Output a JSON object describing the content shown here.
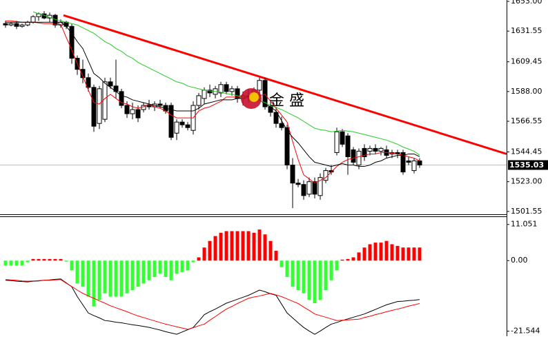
{
  "chart_data": [
    {
      "type": "candlestick",
      "open": [
        1637,
        1636,
        1637,
        1635,
        1636,
        1638,
        1642,
        1644,
        1641,
        1643,
        1636,
        1638,
        1635,
        1612,
        1604,
        1598,
        1591,
        1565,
        1568,
        1595,
        1592,
        1588,
        1578,
        1572,
        1575,
        1575,
        1578,
        1577,
        1579,
        1578,
        1578,
        1558,
        1566,
        1564,
        1560,
        1578,
        1583,
        1589,
        1586,
        1587,
        1593,
        1588,
        1590,
        1583,
        1585,
        1584,
        1589,
        1596,
        1577,
        1573,
        1565,
        1562,
        1535,
        1522,
        1521,
        1514,
        1523,
        1513,
        1524,
        1531,
        1544,
        1559,
        1556,
        1546,
        1535,
        1547,
        1545,
        1547,
        1545,
        1546,
        1543,
        1544,
        1544,
        1538,
        1531,
        1538
      ],
      "high": [
        1639,
        1638,
        1639,
        1637,
        1639,
        1643,
        1645,
        1646,
        1645,
        1644,
        1640,
        1639,
        1637,
        1614,
        1611,
        1601,
        1593,
        1592,
        1598,
        1598,
        1611,
        1590,
        1581,
        1580,
        1578,
        1580,
        1582,
        1581,
        1582,
        1580,
        1580,
        1568,
        1568,
        1566,
        1581,
        1587,
        1591,
        1593,
        1592,
        1595,
        1595,
        1592,
        1592,
        1588,
        1590,
        1591,
        1598,
        1598,
        1582,
        1577,
        1570,
        1564,
        1540,
        1525,
        1524,
        1526,
        1526,
        1529,
        1533,
        1535,
        1562,
        1561,
        1558,
        1548,
        1547,
        1550,
        1549,
        1550,
        1548,
        1549,
        1546,
        1546,
        1546,
        1541,
        1540,
        1540
      ],
      "low": [
        1634,
        1635,
        1633,
        1634,
        1635,
        1637,
        1639,
        1640,
        1638,
        1634,
        1634,
        1633,
        1608,
        1600,
        1594,
        1588,
        1559,
        1561,
        1566,
        1590,
        1583,
        1576,
        1569,
        1568,
        1566,
        1573,
        1575,
        1574,
        1576,
        1572,
        1553,
        1553,
        1562,
        1560,
        1557,
        1575,
        1579,
        1584,
        1583,
        1584,
        1586,
        1585,
        1580,
        1578,
        1580,
        1582,
        1585,
        1575,
        1570,
        1562,
        1560,
        1532,
        1504,
        1519,
        1510,
        1512,
        1511,
        1510,
        1522,
        1528,
        1542,
        1548,
        1528,
        1535,
        1532,
        1538,
        1542,
        1543,
        1542,
        1540,
        1540,
        1540,
        1528,
        1535,
        1529,
        1533
      ],
      "close": [
        1636,
        1637,
        1635,
        1636,
        1638,
        1642,
        1644,
        1641,
        1643,
        1636,
        1638,
        1635,
        1612,
        1604,
        1598,
        1591,
        1563,
        1590,
        1595,
        1592,
        1588,
        1578,
        1572,
        1575,
        1569,
        1578,
        1577,
        1579,
        1578,
        1574,
        1555,
        1566,
        1564,
        1562,
        1578,
        1585,
        1589,
        1587,
        1590,
        1593,
        1588,
        1590,
        1583,
        1585,
        1584,
        1589,
        1596,
        1577,
        1573,
        1565,
        1562,
        1535,
        1522,
        1521,
        1513,
        1523,
        1514,
        1526,
        1531,
        1530,
        1559,
        1550,
        1541,
        1537,
        1545,
        1541,
        1547,
        1545,
        1547,
        1542,
        1544,
        1543,
        1530,
        1537,
        1538,
        1535
      ],
      "up_color": "#ffffff",
      "down_color": "#000000",
      "edge_color": "#000000",
      "series": [
        {
          "color": "#ff0000",
          "values": [
            1639,
            1639,
            1638.5,
            1638,
            1638,
            1638,
            1637.5,
            1637,
            1637,
            1636.5,
            1636.5,
            1627,
            1618,
            1608,
            1599,
            1589,
            1580,
            1579,
            1583,
            1586,
            1583,
            1580,
            1579,
            1577,
            1576,
            1577,
            1579,
            1577,
            1576,
            1574,
            1571,
            1569,
            1569,
            1569,
            1569,
            1574,
            1576,
            1577,
            1579,
            1581,
            1584,
            1584,
            1584,
            1584,
            1584,
            1584,
            1585,
            1586,
            1581,
            1576,
            1571,
            1566,
            1552,
            1539,
            1528,
            1525,
            1522,
            1524,
            1526,
            1530,
            1534,
            1537,
            1539,
            1540,
            1541,
            1542,
            1543,
            1543,
            1544,
            1544,
            1543.5,
            1543,
            1542,
            1541,
            1540,
            1538
          ]
        },
        {
          "color": "#000000",
          "values": [
            1638,
            1638,
            1638,
            1638,
            1638,
            1638,
            1638,
            1638,
            1638,
            1638,
            1638,
            1635,
            1630,
            1624,
            1619,
            1610,
            1601,
            1598,
            1594,
            1591,
            1588,
            1585,
            1584,
            1582,
            1581,
            1580,
            1579,
            1578,
            1577,
            1576,
            1575,
            1574,
            1574,
            1574,
            1574,
            1576,
            1579,
            1580,
            1581,
            1582,
            1582,
            1582,
            1583,
            1583,
            1584,
            1583,
            1582,
            1579,
            1577,
            1574,
            1567,
            1560,
            1555,
            1551,
            1546,
            1541,
            1537,
            1536,
            1535,
            1534,
            1535,
            1536,
            1535,
            1535,
            1534,
            1534,
            1535,
            1537,
            1538,
            1540,
            1541,
            1542,
            1542,
            1543,
            1543,
            1541
          ]
        },
        {
          "color": "#22cc22",
          "values": [
            null,
            null,
            null,
            null,
            null,
            1645.5,
            1644,
            1643,
            1641.5,
            1640,
            1639,
            1638,
            1637,
            1636,
            1634,
            1632,
            1630,
            1627,
            1624,
            1622,
            1619,
            1617,
            1614,
            1612,
            1609,
            1607,
            1605,
            1603,
            1601,
            1599,
            1597,
            1595,
            1594,
            1592,
            1591,
            1590,
            1589,
            1588.5,
            1588,
            1587.5,
            1586.5,
            1586,
            1585,
            1584,
            1583,
            1582,
            1581.5,
            1580,
            1578,
            1576.5,
            1575,
            1573,
            1571,
            1569,
            1566.5,
            1564,
            1561.5,
            1560.5,
            1560,
            1559,
            1559.5,
            1560,
            1559.5,
            1559,
            1558,
            1557,
            1556,
            1555,
            1554,
            1553,
            1551.5,
            1550,
            1548,
            1546.5,
            1545,
            1542
          ]
        }
      ],
      "trendline": {
        "color": "#ff0000",
        "from": 1643,
        "to": 1543
      },
      "last_price": 1535.03,
      "watermark": "金 盛",
      "ylim": [
        1500,
        1654
      ],
      "yticks": [
        {
          "value": 1653,
          "label": "1653.00"
        },
        1631.55,
        1609.45,
        {
          "value": 1588,
          "label": "1588.00"
        },
        1566.55,
        1544.45,
        {
          "value": 1523,
          "label": "1523.00"
        },
        1501.55
      ]
    },
    {
      "type": "macd",
      "values": [
        -1.5,
        -1.5,
        -1.5,
        -1.5,
        -0.5,
        0.5,
        0.5,
        0.5,
        0.5,
        0.5,
        0.5,
        -0.3,
        -3,
        -7,
        -8,
        -11,
        -14,
        -12,
        -10,
        -11,
        -11,
        -11,
        -10,
        -9,
        -8,
        -7,
        -6,
        -5,
        -4,
        -5,
        -6,
        -4,
        -3.5,
        -3,
        -0.5,
        1,
        4,
        6,
        7.5,
        8.5,
        9,
        9,
        9,
        9,
        9,
        8.5,
        9.5,
        8,
        6,
        3,
        -2,
        -5,
        -8,
        -9,
        -10,
        -12,
        -13,
        -12,
        -9,
        -6,
        -3,
        0.3,
        0.5,
        1,
        2.5,
        4,
        5,
        5.5,
        5.5,
        6,
        5,
        4.5,
        4,
        4,
        4,
        4
      ],
      "up_color": "#ff0000",
      "down_color": "#33ff33",
      "series": [
        {
          "color": "#000000",
          "values": [
            -6,
            -6.1,
            -6.3,
            -6.4,
            -6.5,
            -6.3,
            -6.2,
            -6,
            -5.9,
            -5.7,
            -5.6,
            -6.8,
            -8,
            -11,
            -13.5,
            -16,
            -16.8,
            -17.5,
            -18.3,
            -18.5,
            -18.8,
            -19,
            -19.3,
            -19.6,
            -19.8,
            -20.1,
            -20.4,
            -20.8,
            -21.2,
            -21.7,
            -22.1,
            -22.5,
            -21.8,
            -21.1,
            -20.4,
            -18.5,
            -16.5,
            -15.6,
            -14.8,
            -13.9,
            -13,
            -12.4,
            -11.8,
            -11.2,
            -10.6,
            -9.8,
            -9,
            -9.5,
            -10.1,
            -10.6,
            -13.3,
            -16,
            -17.5,
            -19,
            -20.4,
            -21.5,
            -22.5,
            -21.5,
            -20.4,
            -19.4,
            -18.9,
            -18.3,
            -17.8,
            -17.3,
            -16.8,
            -16.3,
            -15.6,
            -14.9,
            -14.2,
            -13.5,
            -13,
            -12.5,
            -12.4,
            -12.2,
            -12.1,
            -11.9
          ]
        },
        {
          "color": "#ff0000",
          "values": [
            -5.8,
            -5.9,
            -6,
            -6.2,
            -6.3,
            -6.2,
            -6.1,
            -6,
            -6,
            -5.9,
            -5.8,
            -6.9,
            -7.9,
            -9,
            -10,
            -10.8,
            -11.5,
            -12.3,
            -13,
            -13.8,
            -14.4,
            -15,
            -15.6,
            -16.3,
            -16.9,
            -17.4,
            -17.9,
            -18.4,
            -18.9,
            -19.4,
            -19.8,
            -20.2,
            -20.6,
            -21,
            -20.5,
            -19.9,
            -19.4,
            -18.2,
            -17.1,
            -15.9,
            -14.8,
            -14,
            -13.1,
            -12.3,
            -11.5,
            -11.1,
            -10.8,
            -10.4,
            -10,
            -10.5,
            -11,
            -11.7,
            -12.4,
            -13.1,
            -14.2,
            -15.2,
            -16.3,
            -16.8,
            -17.3,
            -17.8,
            -18.3,
            -18.2,
            -18.1,
            -18,
            -17.9,
            -17.4,
            -17,
            -16.5,
            -16.1,
            -15.6,
            -15.2,
            -14.8,
            -14.4,
            -13.9,
            -13.5,
            -13.1
          ]
        }
      ],
      "ylim": [
        -23.1,
        13.1
      ],
      "yticks": [
        11.051,
        {
          "value": 0,
          "label": "0.00"
        },
        -21.544
      ]
    }
  ]
}
